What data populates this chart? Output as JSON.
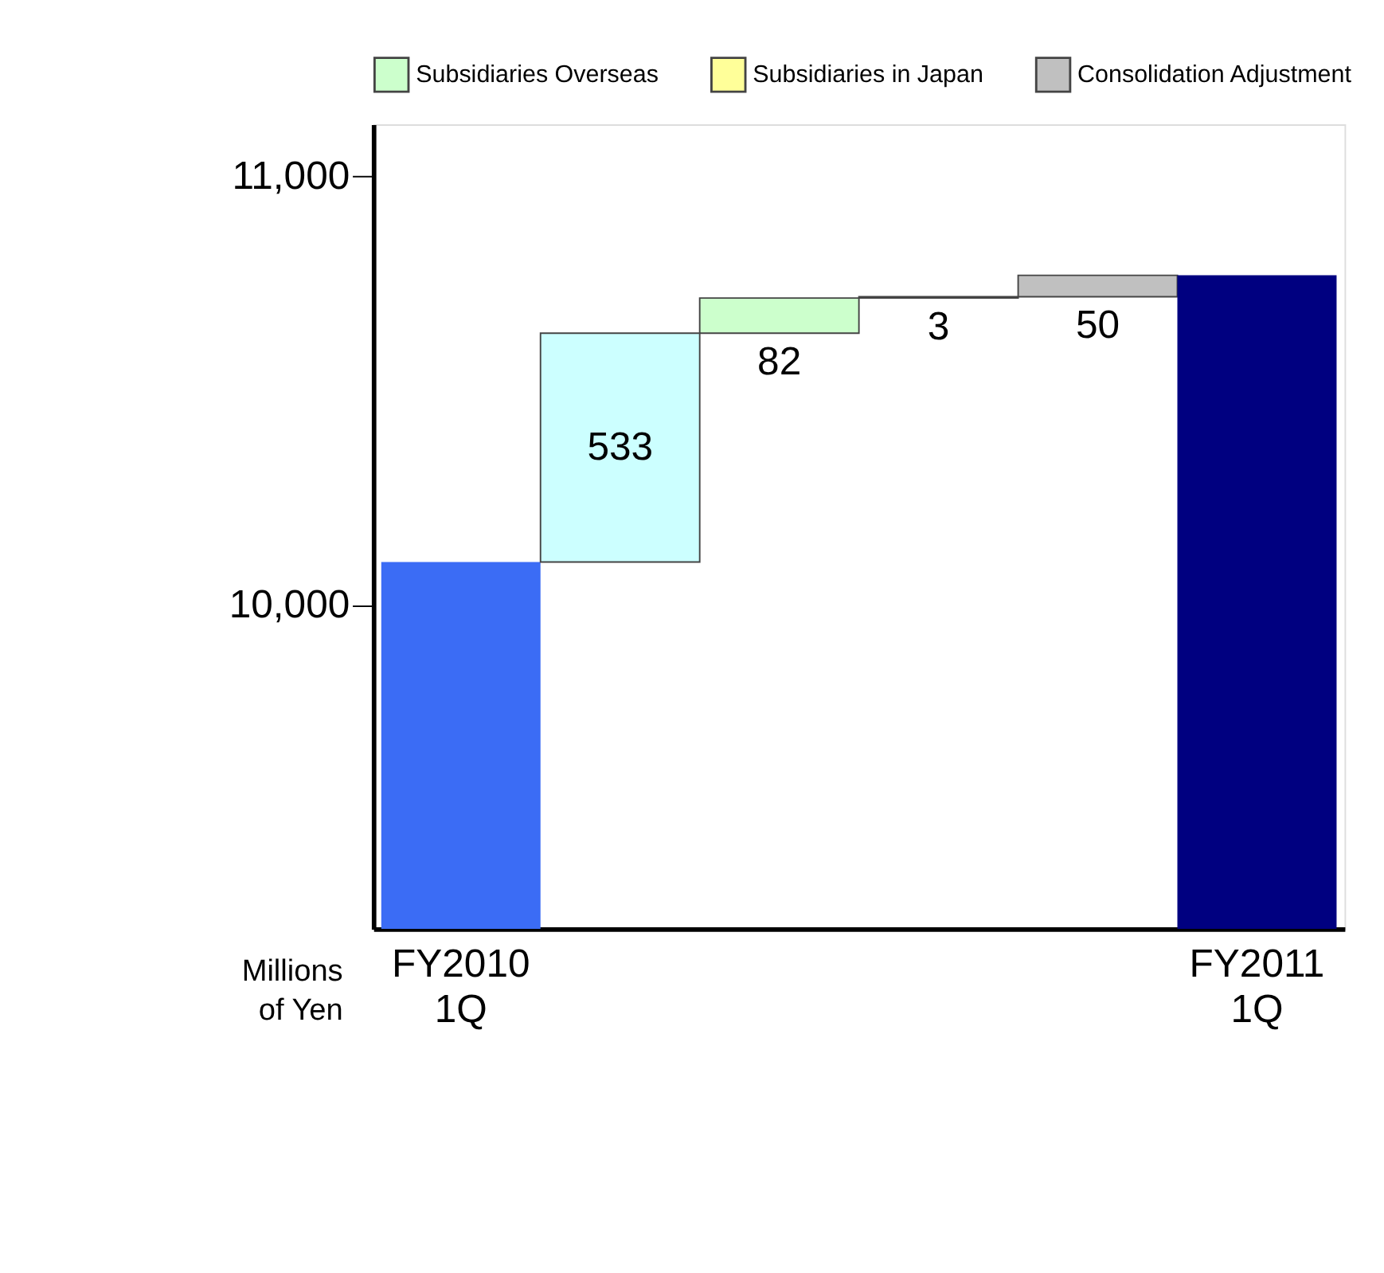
{
  "chart_data": {
    "type": "bar",
    "categories": [
      "FY2010 1Q",
      null,
      null,
      null,
      null,
      "FY2011 1Q"
    ],
    "series": [
      {
        "color": "#3b6cf5",
        "values": [
          10100,
          null,
          null,
          null,
          null,
          null
        ]
      },
      {
        "color": "#ccffff",
        "values": [
          null,
          533,
          null,
          null,
          null,
          null
        ],
        "base": [
          null,
          10100,
          null,
          null,
          null,
          null
        ],
        "value_labels": [
          null,
          "533",
          null,
          null,
          null,
          null
        ]
      },
      {
        "name": "Subsidiaries Overseas",
        "color": "#ccffcc",
        "values": [
          null,
          null,
          82,
          null,
          null,
          null
        ],
        "base": [
          null,
          null,
          10633,
          null,
          null,
          null
        ],
        "value_labels": [
          null,
          null,
          "82",
          null,
          null,
          null
        ]
      },
      {
        "name": "Subsidiaries in Japan",
        "color": "#ffff99",
        "values": [
          null,
          null,
          null,
          3,
          null,
          null
        ],
        "base": [
          null,
          null,
          null,
          10715,
          null,
          null
        ],
        "value_labels": [
          null,
          null,
          null,
          "3",
          null,
          null
        ]
      },
      {
        "name": "Consolidation Adjustment",
        "color": "#c0c0c0",
        "values": [
          null,
          null,
          null,
          null,
          50,
          null
        ],
        "base": [
          null,
          null,
          null,
          null,
          10718,
          null
        ],
        "value_labels": [
          null,
          null,
          null,
          null,
          "50",
          null
        ]
      },
      {
        "color": "#000080",
        "values": [
          null,
          null,
          null,
          null,
          null,
          10768
        ]
      }
    ],
    "ylim": [
      9245,
      11120
    ],
    "yticks": [
      {
        "value": 10000,
        "label": "10,000"
      },
      {
        "value": 11000,
        "label": "11,000"
      }
    ],
    "grid": false,
    "legend": "top",
    "annotations": [
      "Millions of Yen"
    ]
  }
}
